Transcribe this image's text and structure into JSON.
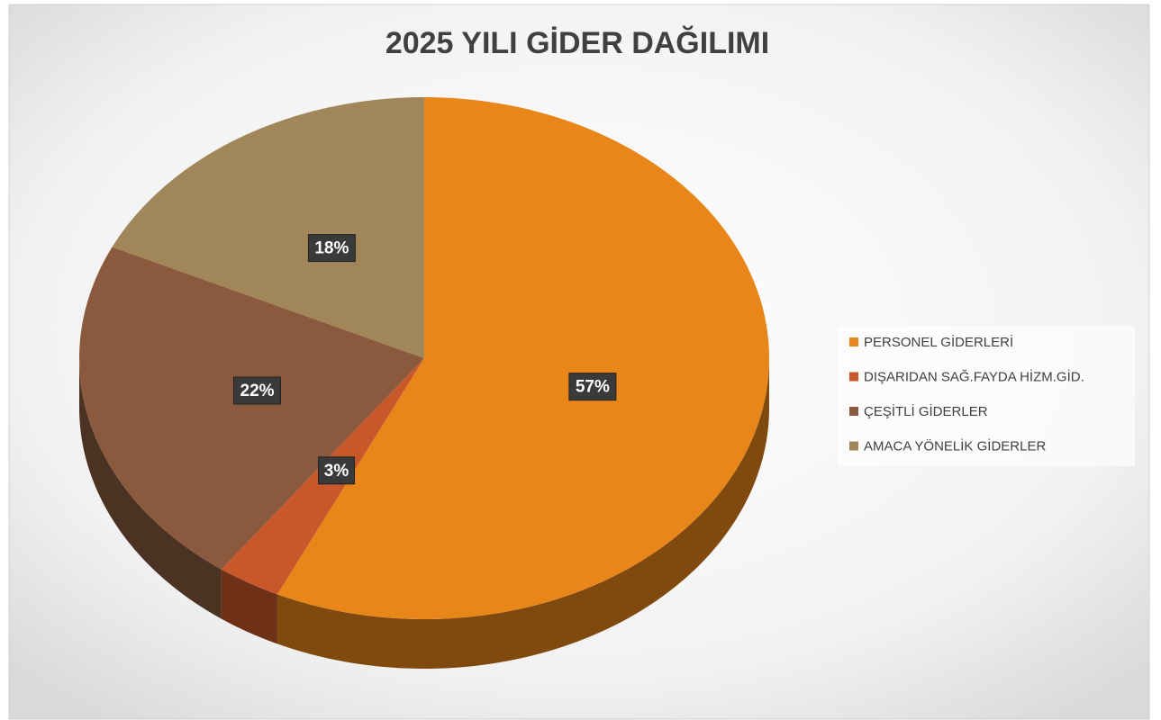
{
  "chart_data": {
    "type": "pie",
    "title": "2025 YILI GİDER DAĞILIMI",
    "categories": [
      "PERSONEL GİDERLERİ",
      "DIŞARIDAN SAĞ.FAYDA HİZM.GİD.",
      "ÇEŞİTLİ GİDERLER",
      "AMACA YÖNELİK GİDERLER"
    ],
    "values": [
      57,
      3,
      22,
      18
    ],
    "value_labels": [
      "57%",
      "3%",
      "22%",
      "18%"
    ],
    "colors": [
      "#e8861a",
      "#c8582a",
      "#8b5a3e",
      "#a08658"
    ],
    "legend": "right"
  }
}
